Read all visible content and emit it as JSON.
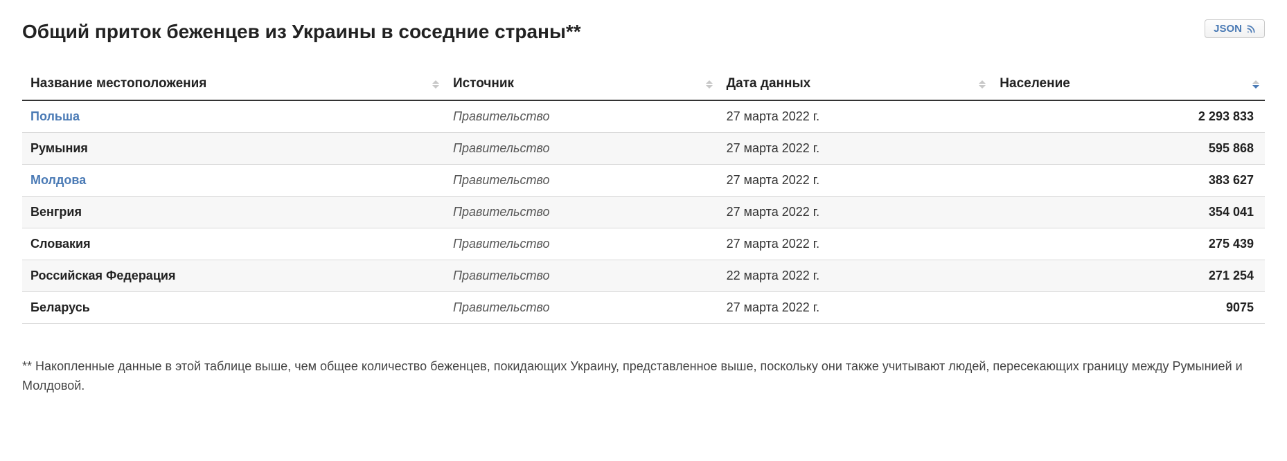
{
  "title": "Общий приток беженцев из Украины в соседние страны**",
  "json_button_label": "JSON",
  "columns": [
    {
      "key": "location",
      "label": "Название местоположения",
      "sortable": true,
      "sorted": null
    },
    {
      "key": "source",
      "label": "Источник",
      "sortable": true,
      "sorted": null
    },
    {
      "key": "date",
      "label": "Дата данных",
      "sortable": true,
      "sorted": null
    },
    {
      "key": "pop",
      "label": "Население",
      "sortable": true,
      "sorted": "desc"
    }
  ],
  "rows": [
    {
      "location": "Польша",
      "is_link": true,
      "source": "Правительство",
      "date": "27 марта 2022 г.",
      "population": "2 293 833"
    },
    {
      "location": "Румыния",
      "is_link": false,
      "source": "Правительство",
      "date": "27 марта 2022 г.",
      "population": "595 868"
    },
    {
      "location": "Молдова",
      "is_link": true,
      "source": "Правительство",
      "date": "27 марта 2022 г.",
      "population": "383 627"
    },
    {
      "location": "Венгрия",
      "is_link": false,
      "source": "Правительство",
      "date": "27 марта 2022 г.",
      "population": "354 041"
    },
    {
      "location": "Словакия",
      "is_link": false,
      "source": "Правительство",
      "date": "27 марта 2022 г.",
      "population": "275 439"
    },
    {
      "location": "Российская Федерация",
      "is_link": false,
      "source": "Правительство",
      "date": "22 марта 2022 г.",
      "population": "271 254"
    },
    {
      "location": "Беларусь",
      "is_link": false,
      "source": "Правительство",
      "date": "27 марта 2022 г.",
      "population": "9075"
    }
  ],
  "footnote": "** Накопленные данные в этой таблице выше, чем общее количество беженцев, покидающих Украину, представленное выше, поскольку они также учитывают людей, пересекающих границу между Румынией и Молдовой.",
  "colors": {
    "link": "#4a7ab5",
    "text": "#222222",
    "row_alt_bg": "#f7f7f7",
    "border": "#d8d8d8",
    "header_border": "#333333",
    "sort_inactive": "#c8c8c8"
  }
}
